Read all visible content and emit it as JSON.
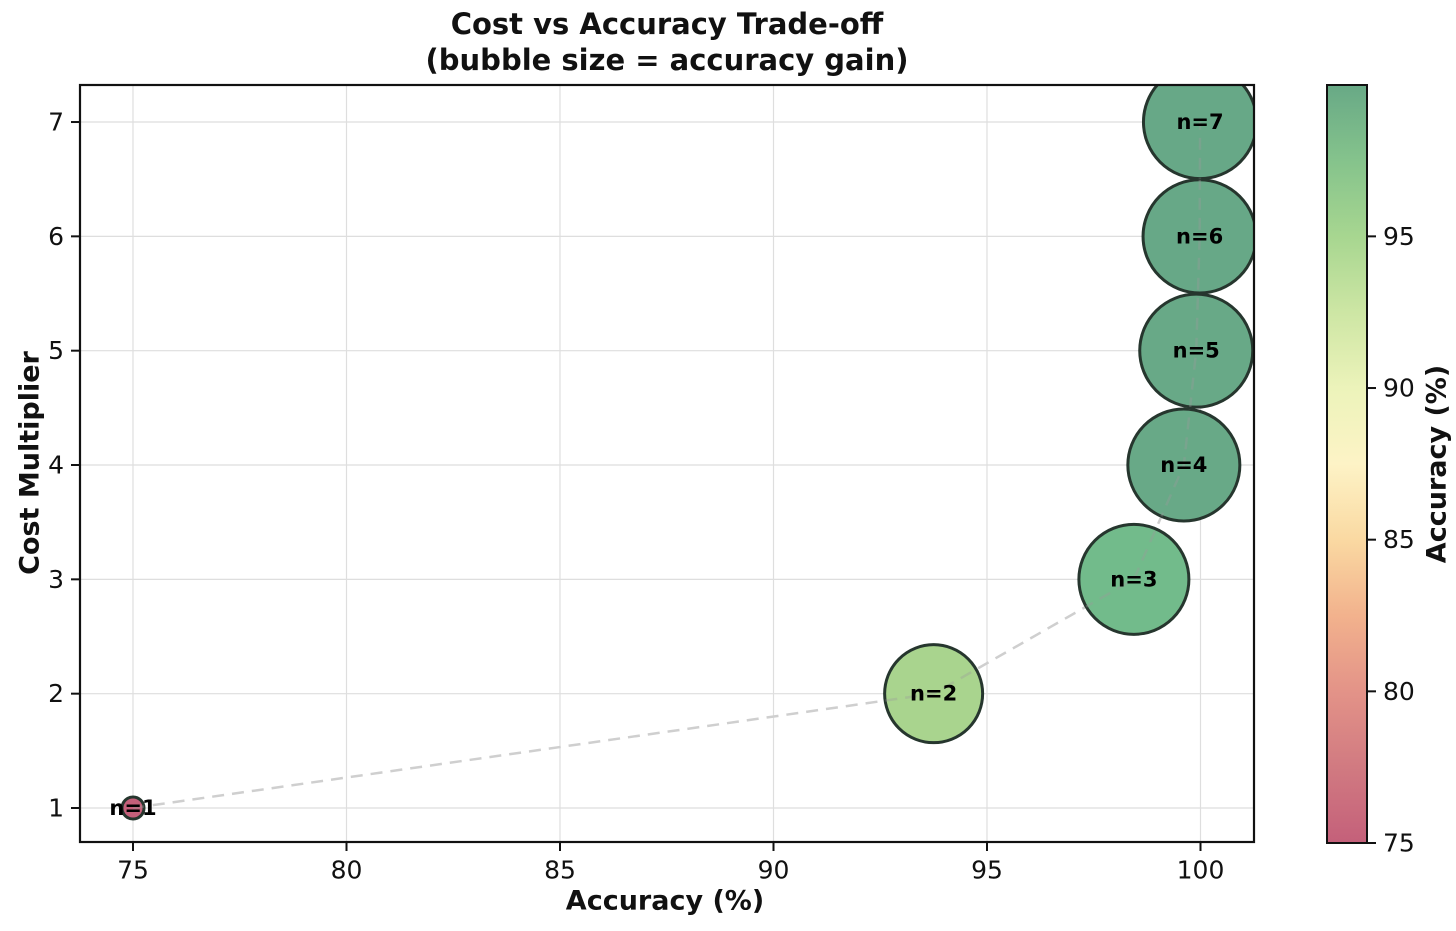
{
  "accent_colors": {
    "grid": "#dedede",
    "spine": "#111111",
    "text": "#111111",
    "trend_line": "#cfcfcf",
    "bubble_edge": "#26362e"
  },
  "chart_data": {
    "type": "scatter",
    "title": "Cost vs Accuracy Trade-off",
    "subtitle": "(bubble size = accuracy gain)",
    "xlabel": "Accuracy (%)",
    "ylabel": "Cost Multiplier",
    "xlim": [
      73.8,
      101.3
    ],
    "ylim": [
      0.7,
      7.3
    ],
    "xticks": [
      75,
      80,
      85,
      90,
      95,
      100
    ],
    "yticks": [
      1,
      2,
      3,
      4,
      5,
      6,
      7
    ],
    "grid": true,
    "legend_position": "none",
    "points": [
      {
        "label": "n=1",
        "n": 1,
        "accuracy": 75.0,
        "cost": 1,
        "gain": 0.0,
        "color": "#c4607a",
        "radius_px": 11
      },
      {
        "label": "n=2",
        "n": 2,
        "accuracy": 93.75,
        "cost": 2,
        "gain": 18.75,
        "color": "#a9d48e",
        "radius_px": 49
      },
      {
        "label": "n=3",
        "n": 3,
        "accuracy": 98.44,
        "cost": 3,
        "gain": 23.44,
        "color": "#72bb8b",
        "radius_px": 55
      },
      {
        "label": "n=4",
        "n": 4,
        "accuracy": 99.61,
        "cost": 4,
        "gain": 24.61,
        "color": "#68a987",
        "radius_px": 56
      },
      {
        "label": "n=5",
        "n": 5,
        "accuracy": 99.9,
        "cost": 5,
        "gain": 24.9,
        "color": "#68a987",
        "radius_px": 56.5
      },
      {
        "label": "n=6",
        "n": 6,
        "accuracy": 99.98,
        "cost": 6,
        "gain": 24.98,
        "color": "#67a887",
        "radius_px": 56.6
      },
      {
        "label": "n=7",
        "n": 7,
        "accuracy": 99.99,
        "cost": 7,
        "gain": 24.99,
        "color": "#67a887",
        "radius_px": 56.6
      }
    ],
    "trend_line": {
      "style": "dashed",
      "color": "#cfcfcf",
      "width": 2.5,
      "dash": "12 8"
    },
    "colorbar": {
      "label": "Accuracy (%)",
      "vmin": 75,
      "vmax": 99.99,
      "ticks": [
        75,
        80,
        85,
        90,
        95
      ],
      "gradient_stops": [
        {
          "v": 75.0,
          "color": "#c4607a"
        },
        {
          "v": 77.5,
          "color": "#d17a81"
        },
        {
          "v": 80.0,
          "color": "#e39388"
        },
        {
          "v": 82.5,
          "color": "#f2b28d"
        },
        {
          "v": 85.0,
          "color": "#fad9a2"
        },
        {
          "v": 87.5,
          "color": "#fdf3c6"
        },
        {
          "v": 90.0,
          "color": "#ecf3ba"
        },
        {
          "v": 92.5,
          "color": "#cde6a4"
        },
        {
          "v": 95.0,
          "color": "#a7d690"
        },
        {
          "v": 97.5,
          "color": "#85c38c"
        },
        {
          "v": 99.99,
          "color": "#68a986"
        }
      ]
    }
  }
}
